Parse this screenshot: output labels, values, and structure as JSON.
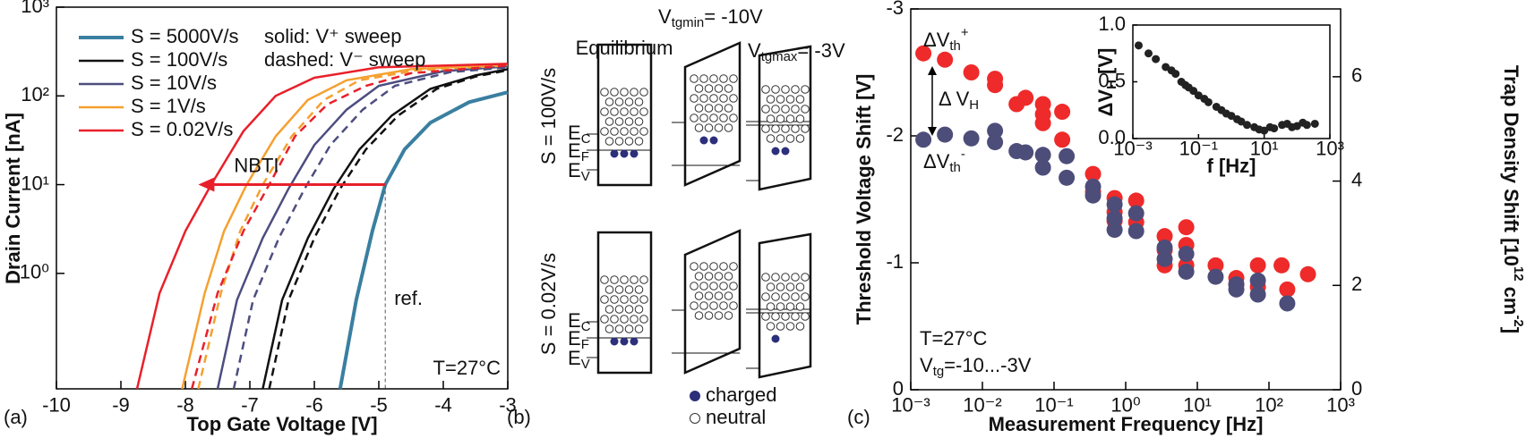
{
  "chart_data": [
    {
      "type": "line",
      "panel_label": "(a)",
      "xlabel": "Top Gate Voltage [V]",
      "ylabel": "Drain Current [nA]",
      "xlim": [
        -10,
        -3
      ],
      "xticks": [
        -10,
        -9,
        -8,
        -7,
        -6,
        -5,
        -4,
        -3
      ],
      "ylim": [
        0.05,
        1000
      ],
      "ylog": true,
      "yticks": [
        {
          "value": 1,
          "label": "10⁰"
        },
        {
          "value": 10,
          "label": "10¹"
        },
        {
          "value": 100,
          "label": "10²"
        },
        {
          "value": 1000,
          "label": "10³"
        }
      ],
      "legend": "upper left",
      "notes": [
        "solid: V⁺ sweep",
        "dashed: V⁻ sweep"
      ],
      "annotation": "T=27°C",
      "nbti": {
        "label": "NBTI",
        "from": -4.9,
        "to": -7.8,
        "at": 10
      },
      "ref": {
        "label": "ref.",
        "x": -4.9,
        "from": 10
      },
      "series": [
        {
          "name": "S = 5000V/s",
          "color": "#3a7fa0",
          "width": 4,
          "up": {
            "x": [
              -5.6,
              -5.35,
              -5.1,
              -4.9,
              -4.6,
              -4.2,
              -3.6,
              -3
            ],
            "values": [
              0.05,
              0.5,
              3,
              10,
              25,
              50,
              85,
              110
            ]
          }
        },
        {
          "name": "S = 100V/s",
          "color": "#111111",
          "width": 2.5,
          "up": {
            "x": [
              -6.8,
              -6.5,
              -6.1,
              -5.7,
              -5.3,
              -4.8,
              -4.2,
              -3.5,
              -3
            ],
            "values": [
              0.05,
              0.5,
              2.5,
              9,
              25,
              60,
              120,
              170,
              200
            ]
          },
          "down": {
            "x": [
              -6.7,
              -6.4,
              -6.0,
              -5.6,
              -5.2,
              -4.7,
              -4.1,
              -3.5,
              -3
            ],
            "values": [
              0.05,
              0.5,
              2.5,
              9,
              25,
              60,
              120,
              165,
              195
            ]
          }
        },
        {
          "name": "S = 10V/s",
          "color": "#4d4d80",
          "width": 2.5,
          "up": {
            "x": [
              -7.5,
              -7.2,
              -6.8,
              -6.4,
              -6.0,
              -5.5,
              -5,
              -4,
              -3
            ],
            "values": [
              0.05,
              0.5,
              2.5,
              9,
              28,
              70,
              130,
              190,
              215
            ]
          },
          "down": {
            "x": [
              -7.25,
              -6.95,
              -6.55,
              -6.15,
              -5.75,
              -5.25,
              -4.75,
              -3.9,
              -3
            ],
            "values": [
              0.05,
              0.5,
              2.5,
              9,
              28,
              70,
              130,
              185,
              210
            ]
          }
        },
        {
          "name": "S = 1V/s",
          "color": "#f5a030",
          "width": 2.5,
          "up": {
            "x": [
              -8.05,
              -7.7,
              -7.4,
              -7.05,
              -6.6,
              -6.1,
              -5.5,
              -4.5,
              -3
            ],
            "values": [
              0.05,
              0.6,
              3,
              10,
              35,
              90,
              150,
              200,
              225
            ]
          },
          "down": {
            "x": [
              -7.8,
              -7.45,
              -7.15,
              -6.8,
              -6.35,
              -5.85,
              -5.3,
              -4.4,
              -3
            ],
            "values": [
              0.05,
              0.6,
              3,
              10,
              35,
              90,
              150,
              195,
              220
            ]
          }
        },
        {
          "name": "S = 0.02V/s",
          "color": "#e8202a",
          "width": 2.5,
          "up": {
            "x": [
              -8.75,
              -8.4,
              -8.0,
              -7.6,
              -7.1,
              -6.6,
              -6,
              -5,
              -3
            ],
            "values": [
              0.05,
              0.6,
              3,
              10,
              40,
              100,
              160,
              210,
              230
            ]
          },
          "down": {
            "x": [
              -7.9,
              -7.5,
              -7.1,
              -6.7,
              -6.3,
              -5.8,
              -5.2,
              -4.5,
              -3
            ],
            "values": [
              0.05,
              0.6,
              3,
              10,
              35,
              80,
              130,
              180,
              220
            ]
          }
        }
      ]
    },
    {
      "type": "scatter",
      "panel_label": "(c)",
      "xlabel": "Measurement Frequency [Hz]",
      "ylabel": "Threshold Voltage Shift [V]",
      "y2label": [
        {
          "text": "Trap Density Shift [10"
        },
        {
          "text": "12",
          "shift": "sup"
        },
        {
          "text": " cm"
        },
        {
          "text": "-2",
          "shift": "sup"
        },
        {
          "text": "]"
        }
      ],
      "xlim": [
        0.001,
        1000
      ],
      "xlog": true,
      "xticks": [
        {
          "value": 0.001,
          "label": "10⁻³"
        },
        {
          "value": 0.01,
          "label": "10⁻²"
        },
        {
          "value": 0.1,
          "label": "10⁻¹"
        },
        {
          "value": 1,
          "label": "10⁰"
        },
        {
          "value": 10,
          "label": "10¹"
        },
        {
          "value": 100,
          "label": "10²"
        },
        {
          "value": 1000,
          "label": "10³"
        }
      ],
      "ylim": [
        0,
        -3
      ],
      "yticks": [
        0,
        -1,
        -2,
        -3
      ],
      "y2lim": [
        0,
        7.3
      ],
      "y2ticks": [
        0,
        2,
        4,
        6
      ],
      "marker": [
        {
          "text": "Δ V"
        },
        {
          "text": "H",
          "shift": "sub"
        }
      ],
      "notes": [
        [
          {
            "text": "T=27°C"
          }
        ],
        [
          {
            "text": "V"
          },
          {
            "text": "tg",
            "shift": "sub"
          },
          {
            "text": "=-10...-3V"
          }
        ]
      ],
      "series": [
        {
          "label": [
            {
              "text": "ΔV"
            },
            {
              "text": "th",
              "shift": "sub"
            },
            {
              "text": "+",
              "shift": "sup"
            }
          ],
          "color": "#ee2a2a",
          "x": [
            0.0015,
            0.003,
            0.007,
            0.015,
            0.015,
            0.03,
            0.04,
            0.07,
            0.07,
            0.07,
            0.13,
            0.13,
            0.35,
            0.35,
            0.7,
            0.7,
            0.7,
            1.4,
            1.4,
            3.5,
            3.5,
            3.5,
            7,
            7,
            7,
            18,
            35,
            35,
            70,
            70,
            150,
            180,
            350
          ],
          "values": [
            -2.65,
            -2.6,
            -2.5,
            -2.45,
            -2.4,
            -2.25,
            -2.3,
            -2.25,
            -2.17,
            -2.1,
            -2.19,
            -1.97,
            -1.7,
            -1.56,
            -1.51,
            -1.4,
            -1.33,
            -1.49,
            -1.32,
            -1.21,
            -1.1,
            -0.98,
            -1.28,
            -1.14,
            -0.98,
            -0.98,
            -0.88,
            -0.83,
            -0.98,
            -0.81,
            -0.98,
            -0.79,
            -0.91
          ]
        },
        {
          "label": [
            {
              "text": "ΔV"
            },
            {
              "text": "th",
              "shift": "sub"
            },
            {
              "text": "-",
              "shift": "sup"
            }
          ],
          "color": "#4d4d7a",
          "x": [
            0.0015,
            0.003,
            0.007,
            0.015,
            0.015,
            0.03,
            0.04,
            0.07,
            0.07,
            0.15,
            0.15,
            0.35,
            0.35,
            0.7,
            0.7,
            0.7,
            1.4,
            1.4,
            3.5,
            3.5,
            7,
            7,
            18,
            35,
            35,
            70,
            70,
            180
          ],
          "values": [
            -1.97,
            -2.01,
            -1.98,
            -2.04,
            -1.95,
            -1.88,
            -1.87,
            -1.85,
            -1.75,
            -1.84,
            -1.67,
            -1.6,
            -1.53,
            -1.46,
            -1.35,
            -1.26,
            -1.39,
            -1.25,
            -1.12,
            -1.03,
            -1.07,
            -0.93,
            -0.89,
            -0.83,
            -0.79,
            -0.86,
            -0.75,
            -0.68
          ]
        }
      ]
    },
    {
      "type": "scatter",
      "xlabel": "f [Hz]",
      "ylabel": [
        {
          "text": "ΔV"
        },
        {
          "text": "H",
          "shift": "sub"
        },
        {
          "text": " [V]"
        }
      ],
      "xlim": [
        0.001,
        1000
      ],
      "xlog": true,
      "xticks": [
        {
          "value": 0.001,
          "label": "10⁻³"
        },
        {
          "value": 0.1,
          "label": "10⁻¹"
        },
        {
          "value": 10,
          "label": "10¹"
        },
        {
          "value": 1000,
          "label": "10³"
        }
      ],
      "ylim": [
        0,
        1
      ],
      "yticks": [
        {
          "value": 0,
          "label": "0.0"
        },
        {
          "value": 0.5,
          "label": "0.5"
        },
        {
          "value": 1,
          "label": "1.0"
        }
      ],
      "series": [
        {
          "color": "#222222",
          "x": [
            0.0015,
            0.003,
            0.005,
            0.01,
            0.015,
            0.02,
            0.03,
            0.04,
            0.05,
            0.07,
            0.1,
            0.15,
            0.2,
            0.35,
            0.5,
            0.7,
            1,
            1.5,
            2,
            3,
            5,
            7,
            10,
            15,
            20,
            35,
            50,
            70,
            100,
            150,
            200,
            350
          ],
          "values": [
            0.82,
            0.75,
            0.7,
            0.63,
            0.6,
            0.57,
            0.5,
            0.47,
            0.45,
            0.42,
            0.38,
            0.35,
            0.32,
            0.28,
            0.25,
            0.22,
            0.2,
            0.17,
            0.15,
            0.12,
            0.1,
            0.08,
            0.07,
            0.1,
            0.09,
            0.12,
            0.13,
            0.1,
            0.11,
            0.14,
            0.12,
            0.13
          ]
        }
      ]
    }
  ],
  "diagram": {
    "panel_label": "(b)",
    "vmin": [
      {
        "text": "V"
      },
      {
        "text": "tgmin",
        "shift": "sub"
      },
      {
        "text": "= -10V"
      }
    ],
    "vmax": [
      {
        "text": "V"
      },
      {
        "text": "tgmax",
        "shift": "sub"
      },
      {
        "text": "= -3V"
      }
    ],
    "column": "Equilibrium",
    "rows": [
      "S = 100V/s",
      "S = 0.02V/s"
    ],
    "levels": [
      [
        {
          "text": "E"
        },
        {
          "text": "C",
          "shift": "sub"
        }
      ],
      [
        {
          "text": "E"
        },
        {
          "text": "F",
          "shift": "sub"
        }
      ],
      [
        {
          "text": "E"
        },
        {
          "text": "V",
          "shift": "sub"
        }
      ]
    ],
    "legend": [
      "charged",
      "neutral"
    ]
  }
}
